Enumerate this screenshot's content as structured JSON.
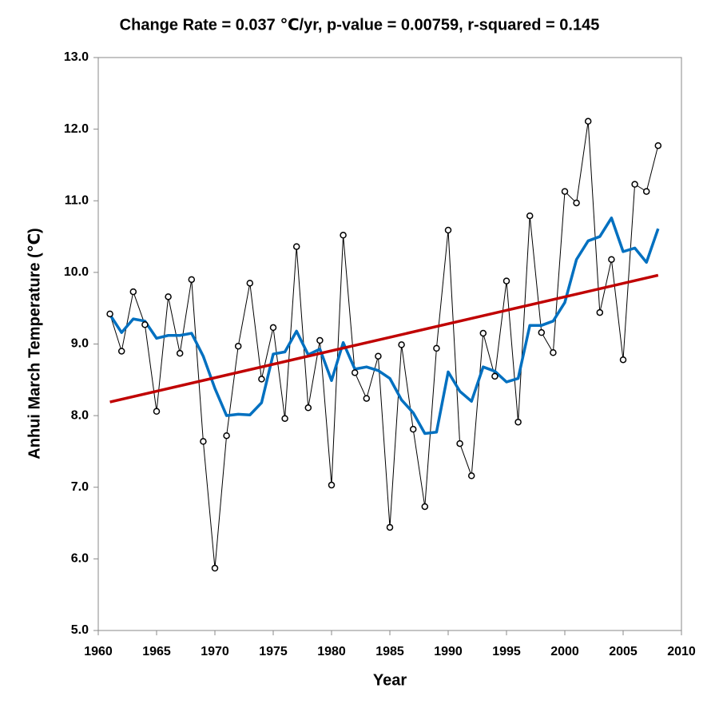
{
  "chart_data": {
    "type": "line",
    "title": "Change Rate =  0.037 ℃/yr,  p-value =  0.00759,  r-squared =  0.145",
    "xlabel": "Year",
    "ylabel": "Anhui March Temperature (℃)",
    "x": [
      1961,
      1962,
      1963,
      1964,
      1965,
      1966,
      1967,
      1968,
      1969,
      1970,
      1971,
      1972,
      1973,
      1974,
      1975,
      1976,
      1977,
      1978,
      1979,
      1980,
      1981,
      1982,
      1983,
      1984,
      1985,
      1986,
      1987,
      1988,
      1989,
      1990,
      1991,
      1992,
      1993,
      1994,
      1995,
      1996,
      1997,
      1998,
      1999,
      2000,
      2001,
      2002,
      2003,
      2004,
      2005,
      2006,
      2007,
      2008
    ],
    "series": [
      {
        "color": "#000000",
        "markers": true,
        "values": [
          9.42,
          8.9,
          9.73,
          9.27,
          8.06,
          9.66,
          8.87,
          9.9,
          7.64,
          5.87,
          7.72,
          8.97,
          9.85,
          8.51,
          9.23,
          7.96,
          10.36,
          8.11,
          9.05,
          7.03,
          10.52,
          8.6,
          8.24,
          8.83,
          6.44,
          8.99,
          7.81,
          6.73,
          8.94,
          10.59,
          7.61,
          7.16,
          9.15,
          8.55,
          9.88,
          7.91,
          10.79,
          9.16,
          8.88,
          11.13,
          10.97,
          12.11,
          9.44,
          10.18,
          8.78,
          11.23,
          11.13,
          11.77
        ]
      },
      {
        "color": "#0070c0",
        "markers": false,
        "values": [
          9.41,
          9.16,
          9.35,
          9.32,
          9.08,
          9.12,
          9.12,
          9.15,
          8.83,
          8.38,
          8.0,
          8.02,
          8.01,
          8.18,
          8.86,
          8.89,
          9.18,
          8.85,
          8.93,
          8.49,
          9.02,
          8.65,
          8.68,
          8.63,
          8.52,
          8.22,
          8.04,
          7.75,
          7.77,
          8.61,
          8.34,
          8.2,
          8.68,
          8.62,
          8.47,
          8.52,
          9.26,
          9.26,
          9.32,
          9.58,
          10.18,
          10.44,
          10.5,
          10.76,
          10.29,
          10.34,
          10.14,
          10.61
        ]
      }
    ],
    "trend": {
      "color": "#c00000",
      "x": [
        1961,
        2008
      ],
      "values": [
        8.19,
        9.96
      ]
    },
    "xlim": [
      1960,
      2010
    ],
    "xticks": [
      1960,
      1965,
      1970,
      1975,
      1980,
      1985,
      1990,
      1995,
      2000,
      2005,
      2010
    ],
    "ylim": [
      5,
      13
    ],
    "yticks": [
      {
        "value": 5,
        "label": "5.0"
      },
      {
        "value": 6,
        "label": "6.0"
      },
      {
        "value": 7,
        "label": "7.0"
      },
      {
        "value": 8,
        "label": "8.0"
      },
      {
        "value": 9,
        "label": "9.0"
      },
      {
        "value": 10,
        "label": "10.0"
      },
      {
        "value": 11,
        "label": "11.0"
      },
      {
        "value": 12,
        "label": "12.0"
      },
      {
        "value": 13,
        "label": "13.0"
      }
    ],
    "grid": false
  }
}
